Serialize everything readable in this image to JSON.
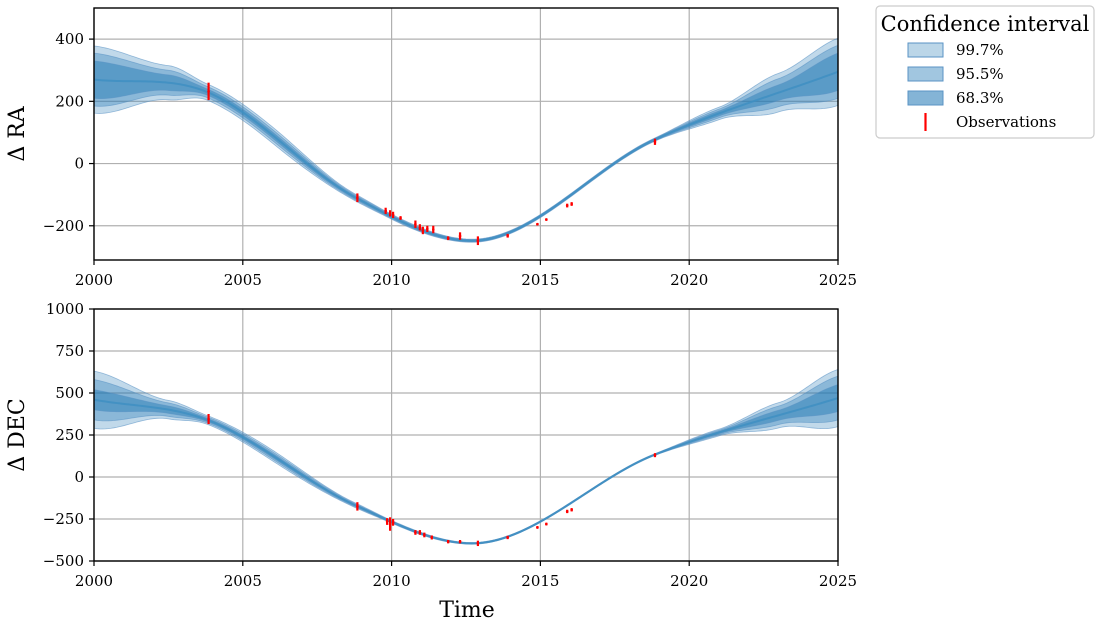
{
  "chart_data": [
    {
      "type": "area",
      "ylabel": "Δ RA",
      "xlabel": "",
      "xlim": [
        2000,
        2025
      ],
      "ylim": [
        -310,
        500
      ],
      "xticks": [
        2000,
        2005,
        2010,
        2015,
        2020,
        2025
      ],
      "yticks": [
        -200,
        0,
        200,
        400
      ],
      "yticklabels": [
        "−200",
        "0",
        "200",
        "400"
      ],
      "grid": true,
      "model": {
        "x": [
          2000,
          2003.8,
          2008.8,
          2012.7,
          2018.8,
          2025
        ],
        "center": [
          270,
          230,
          -110,
          -248,
          75,
          295
        ],
        "band_68": [
          [
            2000,
            60
          ],
          [
            2002.5,
            25
          ],
          [
            2003.8,
            10
          ],
          [
            2006,
            10
          ],
          [
            2008.8,
            5
          ],
          [
            2010,
            4
          ],
          [
            2012.7,
            3
          ],
          [
            2015.9,
            3
          ],
          [
            2018.8,
            3
          ],
          [
            2021,
            8
          ],
          [
            2023,
            25
          ],
          [
            2025,
            60
          ]
        ],
        "band_95": [
          [
            2000,
            85
          ],
          [
            2002.5,
            40
          ],
          [
            2003.8,
            18
          ],
          [
            2006,
            18
          ],
          [
            2008.8,
            8
          ],
          [
            2010,
            6
          ],
          [
            2012.7,
            4
          ],
          [
            2015.9,
            4
          ],
          [
            2018.8,
            4
          ],
          [
            2021,
            14
          ],
          [
            2023,
            45
          ],
          [
            2025,
            85
          ]
        ],
        "band_997": [
          [
            2000,
            108
          ],
          [
            2002.5,
            55
          ],
          [
            2003.8,
            26
          ],
          [
            2006,
            26
          ],
          [
            2008.8,
            11
          ],
          [
            2010,
            8
          ],
          [
            2012.7,
            5
          ],
          [
            2015.9,
            5
          ],
          [
            2018.8,
            5
          ],
          [
            2021,
            20
          ],
          [
            2023,
            62
          ],
          [
            2025,
            108
          ]
        ]
      },
      "observations": [
        {
          "x": 2003.85,
          "y": 232,
          "err": 28
        },
        {
          "x": 2008.85,
          "y": -110,
          "err": 14
        },
        {
          "x": 2009.8,
          "y": -152,
          "err": 10
        },
        {
          "x": 2009.95,
          "y": -160,
          "err": 10
        },
        {
          "x": 2010.05,
          "y": -165,
          "err": 10
        },
        {
          "x": 2010.3,
          "y": -175,
          "err": 6
        },
        {
          "x": 2010.8,
          "y": -195,
          "err": 12
        },
        {
          "x": 2010.95,
          "y": -205,
          "err": 10
        },
        {
          "x": 2011.05,
          "y": -215,
          "err": 12
        },
        {
          "x": 2011.2,
          "y": -210,
          "err": 10
        },
        {
          "x": 2011.4,
          "y": -212,
          "err": 12
        },
        {
          "x": 2011.9,
          "y": -240,
          "err": 6
        },
        {
          "x": 2012.3,
          "y": -233,
          "err": 12
        },
        {
          "x": 2012.9,
          "y": -248,
          "err": 14
        },
        {
          "x": 2013.9,
          "y": -232,
          "err": 6
        },
        {
          "x": 2014.9,
          "y": -195,
          "err": 4
        },
        {
          "x": 2015.2,
          "y": -180,
          "err": 4
        },
        {
          "x": 2015.9,
          "y": -135,
          "err": 6
        },
        {
          "x": 2016.05,
          "y": -130,
          "err": 6
        },
        {
          "x": 2018.85,
          "y": 70,
          "err": 10
        }
      ]
    },
    {
      "type": "area",
      "ylabel": "Δ DEC",
      "xlabel": "Time",
      "xlim": [
        2000,
        2025
      ],
      "ylim": [
        -500,
        1000
      ],
      "xticks": [
        2000,
        2005,
        2010,
        2015,
        2020,
        2025
      ],
      "yticks": [
        -500,
        -250,
        0,
        250,
        500,
        750,
        1000
      ],
      "yticklabels": [
        "−500",
        "−250",
        "0",
        "250",
        "500",
        "750",
        "1000"
      ],
      "grid": true,
      "model": {
        "x": [
          2000,
          2003.8,
          2008.8,
          2012.7,
          2018.8,
          2025
        ],
        "center": [
          460,
          340,
          -170,
          -395,
          130,
          470
        ],
        "band_68": [
          [
            2000,
            60
          ],
          [
            2002.5,
            22
          ],
          [
            2003.8,
            10
          ],
          [
            2006,
            12
          ],
          [
            2008.8,
            6
          ],
          [
            2010,
            4
          ],
          [
            2012.7,
            3
          ],
          [
            2015.9,
            3
          ],
          [
            2018.8,
            3
          ],
          [
            2021,
            8
          ],
          [
            2023,
            30
          ],
          [
            2025,
            80
          ]
        ],
        "band_95": [
          [
            2000,
            120
          ],
          [
            2002.5,
            40
          ],
          [
            2003.8,
            18
          ],
          [
            2006,
            22
          ],
          [
            2008.8,
            10
          ],
          [
            2010,
            6
          ],
          [
            2012.7,
            4
          ],
          [
            2015.9,
            4
          ],
          [
            2018.8,
            4
          ],
          [
            2021,
            14
          ],
          [
            2023,
            55
          ],
          [
            2025,
            130
          ]
        ],
        "band_997": [
          [
            2000,
            170
          ],
          [
            2002.5,
            55
          ],
          [
            2003.8,
            26
          ],
          [
            2006,
            32
          ],
          [
            2008.8,
            14
          ],
          [
            2010,
            8
          ],
          [
            2012.7,
            5
          ],
          [
            2015.9,
            5
          ],
          [
            2018.8,
            5
          ],
          [
            2021,
            20
          ],
          [
            2023,
            75
          ],
          [
            2025,
            170
          ]
        ]
      },
      "observations": [
        {
          "x": 2003.85,
          "y": 345,
          "err": 30
        },
        {
          "x": 2008.85,
          "y": -175,
          "err": 25
        },
        {
          "x": 2009.85,
          "y": -265,
          "err": 20
        },
        {
          "x": 2009.95,
          "y": -280,
          "err": 40
        },
        {
          "x": 2010.05,
          "y": -270,
          "err": 20
        },
        {
          "x": 2010.8,
          "y": -330,
          "err": 14
        },
        {
          "x": 2010.95,
          "y": -330,
          "err": 14
        },
        {
          "x": 2011.1,
          "y": -345,
          "err": 14
        },
        {
          "x": 2011.35,
          "y": -360,
          "err": 12
        },
        {
          "x": 2011.9,
          "y": -385,
          "err": 10
        },
        {
          "x": 2012.3,
          "y": -385,
          "err": 10
        },
        {
          "x": 2012.9,
          "y": -395,
          "err": 16
        },
        {
          "x": 2013.9,
          "y": -360,
          "err": 10
        },
        {
          "x": 2014.9,
          "y": -300,
          "err": 8
        },
        {
          "x": 2015.2,
          "y": -280,
          "err": 8
        },
        {
          "x": 2015.9,
          "y": -205,
          "err": 10
        },
        {
          "x": 2016.05,
          "y": -195,
          "err": 10
        },
        {
          "x": 2018.85,
          "y": 130,
          "err": 12
        }
      ]
    }
  ],
  "legend": {
    "title": "Confidence interval",
    "placement": "outside-top-right",
    "entries": [
      {
        "label": "99.7%",
        "kind": "band",
        "key": "band_997"
      },
      {
        "label": "95.5%",
        "kind": "band",
        "key": "band_95"
      },
      {
        "label": "68.3%",
        "kind": "band",
        "key": "band_68"
      },
      {
        "label": "Observations",
        "kind": "errorbar"
      }
    ]
  },
  "colors": {
    "band": "#1f77b4",
    "band_edge": "#5a93c4",
    "line": "#3f8fc2",
    "observation": "#ff0000",
    "grid": "#b0b0b0",
    "axis": "#000000"
  }
}
